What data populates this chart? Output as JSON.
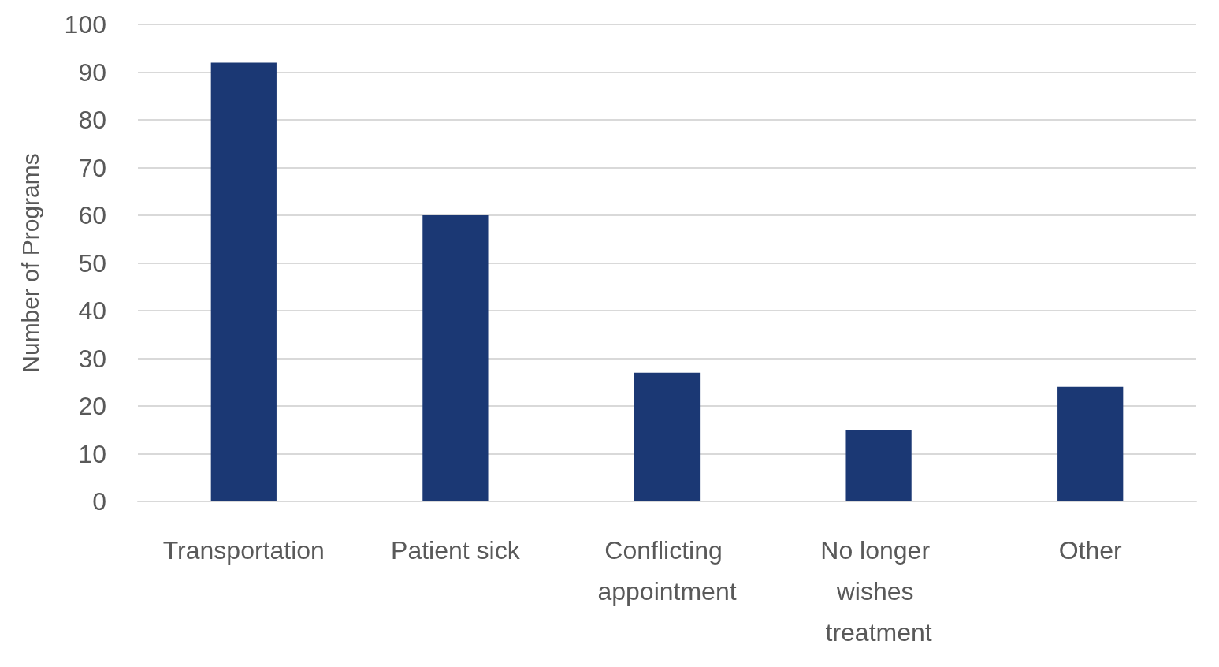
{
  "chart_data": {
    "type": "bar",
    "ylabel": "Number of Programs",
    "categories": [
      "Transportation",
      "Patient sick",
      "Conflicting appointment",
      "No longer wishes treatment",
      "Other"
    ],
    "values": [
      92,
      60,
      27,
      15,
      24
    ],
    "color": "#1b3874",
    "ylim": [
      0,
      100
    ],
    "yticks": [
      0,
      10,
      20,
      30,
      40,
      50,
      60,
      70,
      80,
      90,
      100
    ],
    "grid": "y"
  }
}
